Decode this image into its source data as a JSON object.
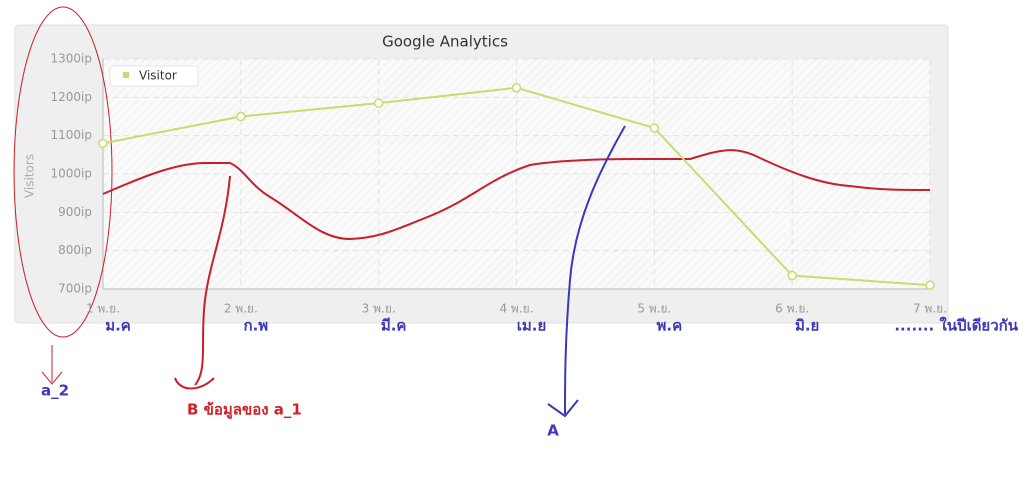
{
  "chart_data": {
    "type": "line",
    "title": "Google Analytics",
    "ylabel": "Visitors",
    "categories": [
      "1 พ.ย.",
      "2 พ.ย.",
      "3 พ.ย.",
      "4 พ.ย.",
      "5 พ.ย.",
      "6 พ.ย.",
      "7 พ.ย."
    ],
    "series": [
      {
        "name": "Visitor",
        "color": "#c8dc6e",
        "values": [
          1080,
          1150,
          1185,
          1225,
          1120,
          735,
          710
        ]
      }
    ],
    "ylim": [
      700,
      1300
    ],
    "yticks": [
      {
        "value": 700,
        "label": "700ip"
      },
      {
        "value": 800,
        "label": "800ip"
      },
      {
        "value": 900,
        "label": "900ip"
      },
      {
        "value": 1000,
        "label": "1000ip"
      },
      {
        "value": 1100,
        "label": "1100ip"
      },
      {
        "value": 1200,
        "label": "1200ip"
      },
      {
        "value": 1300,
        "label": "1300ip"
      }
    ],
    "grid": true,
    "legend": "top-left",
    "annotations": {
      "months": [
        "ม.ค",
        "ก.พ",
        "มี.ค",
        "เม.ย",
        "พ.ค",
        "มิ.ย",
        "....... ในปีเดียวกัน"
      ],
      "a2": "a_2",
      "b": "B ข้อมูลของ   a_1",
      "a": "A"
    }
  }
}
